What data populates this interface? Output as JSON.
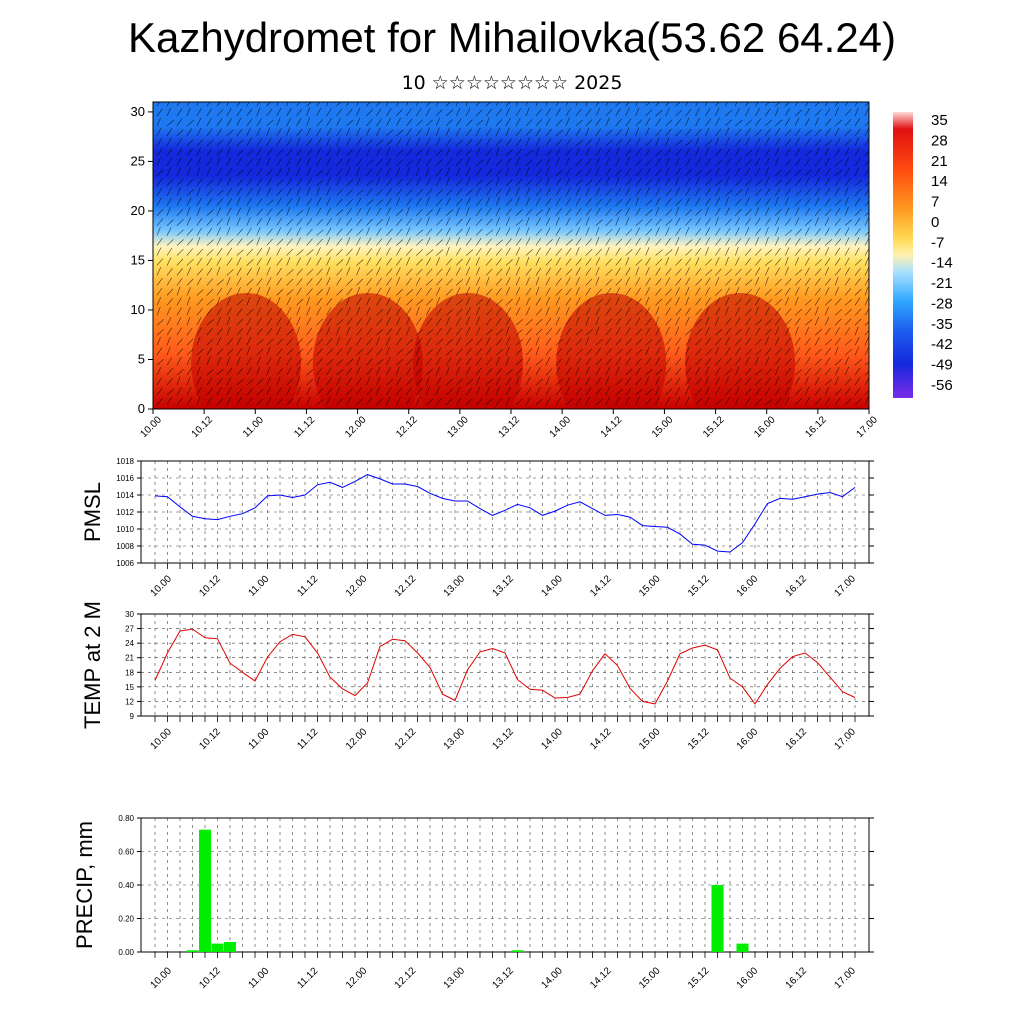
{
  "title": "Kazhydromet for Mihailovka(53.62 64.24)",
  "subtitle": "10 ☆☆☆☆☆☆☆☆ 2025",
  "time_labels": [
    "10.00",
    "10.12",
    "11.00",
    "11.12",
    "12.00",
    "12.12",
    "13.00",
    "13.12",
    "14.00",
    "14.12",
    "15.00",
    "15.12",
    "16.00",
    "16.12",
    "17.00"
  ],
  "chart_data": [
    {
      "type": "heatmap",
      "name": "cross-section",
      "y_ticks": [
        0,
        5,
        10,
        15,
        20,
        25,
        30
      ],
      "ylim": [
        0,
        31
      ],
      "colorbar": {
        "labels": [
          "35",
          "28",
          "21",
          "14",
          "7",
          "0",
          "-7",
          "-14",
          "-21",
          "-28",
          "-35",
          "-42",
          "-49",
          "-56"
        ],
        "colors": {
          "hot": "#c80000",
          "warm": "#ff5a1a",
          "orange": "#ff9a20",
          "yellow": "#ffe060",
          "pale": "#fff4c0",
          "sky": "#78c8ff",
          "blue": "#1e78f0",
          "deep": "#1428dc",
          "violet": "#7a2ce6"
        }
      },
      "grid": false
    },
    {
      "type": "line",
      "ylabel": "PMSL",
      "ylim": [
        1006,
        1018
      ],
      "y_ticks": [
        "1006",
        "1008",
        "1010",
        "1012",
        "1014",
        "1016",
        "1018"
      ],
      "color": "#0000ff",
      "x_step_hours": 3,
      "values": [
        1013.9,
        1013.8,
        1012.6,
        1011.5,
        1011.2,
        1011.1,
        1011.5,
        1011.8,
        1012.5,
        1013.9,
        1014.0,
        1013.7,
        1014.0,
        1015.2,
        1015.5,
        1014.9,
        1015.6,
        1016.4,
        1015.9,
        1015.3,
        1015.3,
        1015.0,
        1014.2,
        1013.6,
        1013.3,
        1013.3,
        1012.4,
        1011.6,
        1012.2,
        1012.9,
        1012.5,
        1011.6,
        1012.1,
        1012.8,
        1013.2,
        1012.4,
        1011.6,
        1011.7,
        1011.4,
        1010.4,
        1010.3,
        1010.2,
        1009.4,
        1008.2,
        1008.1,
        1007.4,
        1007.3,
        1008.4,
        1010.6,
        1013.0,
        1013.6,
        1013.5,
        1013.8,
        1014.1,
        1014.3,
        1013.8,
        1014.9
      ]
    },
    {
      "type": "line",
      "ylabel": "TEMP at 2 M",
      "ylim": [
        9,
        30
      ],
      "y_ticks": [
        "9",
        "12",
        "15",
        "18",
        "21",
        "24",
        "27",
        "30"
      ],
      "color": "#e00000",
      "x_step_hours": 3,
      "values": [
        16.3,
        22.0,
        26.5,
        26.9,
        25.1,
        24.9,
        19.9,
        18.0,
        16.2,
        21.1,
        24.3,
        25.8,
        25.3,
        22.0,
        17.0,
        14.6,
        13.2,
        15.8,
        23.3,
        24.8,
        24.5,
        22.0,
        19.0,
        13.5,
        12.2,
        18.5,
        22.2,
        22.9,
        22.0,
        16.5,
        14.5,
        14.3,
        12.7,
        12.8,
        13.5,
        18.3,
        21.8,
        19.4,
        14.7,
        12.0,
        11.5,
        16.2,
        21.8,
        23.0,
        23.6,
        22.6,
        16.8,
        15.0,
        11.5,
        15.5,
        18.8,
        21.2,
        22.0,
        20.0,
        17.0,
        14.0,
        12.8
      ]
    },
    {
      "type": "bar",
      "ylabel": "PRECIP, mm",
      "ylim": [
        0,
        0.8
      ],
      "y_ticks": [
        "0.00",
        "0.20",
        "0.40",
        "0.60",
        "0.80"
      ],
      "color": "#00ee00",
      "x_step_hours": 3,
      "values": [
        0,
        0,
        0,
        0.01,
        0.73,
        0.05,
        0.06,
        0,
        0,
        0,
        0,
        0,
        0,
        0,
        0,
        0,
        0,
        0,
        0,
        0,
        0,
        0,
        0,
        0,
        0,
        0,
        0,
        0,
        0,
        0.01,
        0,
        0,
        0,
        0,
        0,
        0,
        0,
        0,
        0,
        0,
        0,
        0,
        0,
        0,
        0,
        0.4,
        0,
        0.05,
        0,
        0,
        0,
        0,
        0,
        0,
        0,
        0,
        0
      ]
    }
  ]
}
